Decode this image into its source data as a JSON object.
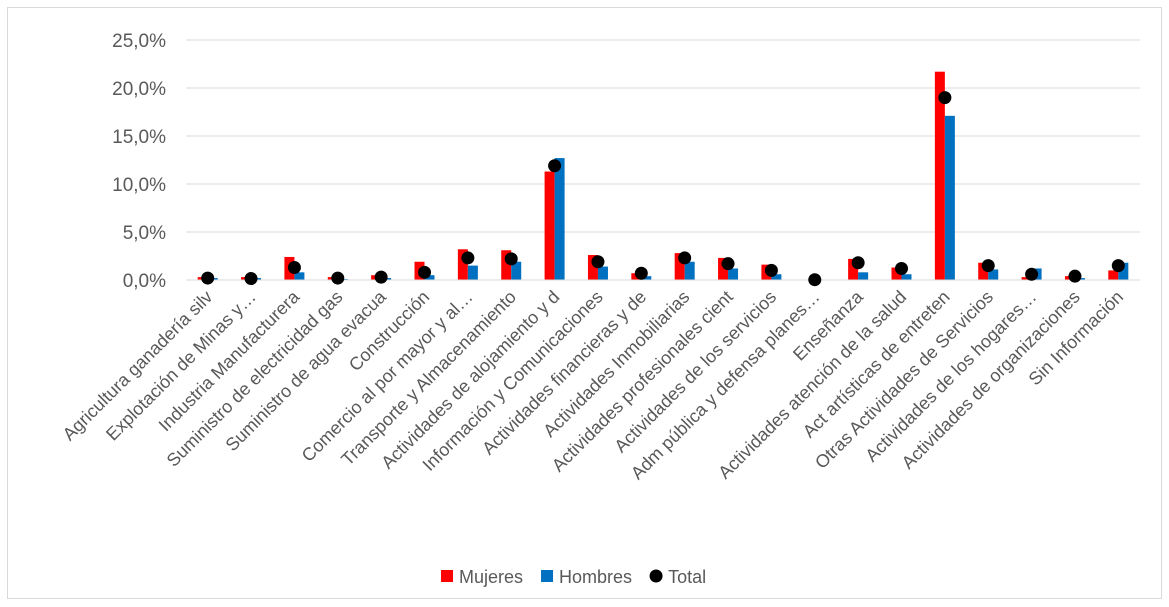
{
  "chart_data": {
    "type": "bar",
    "categories": [
      "Agricultura ganadería silv",
      "Explotación de Minas y…",
      "Industria Manufacturera",
      "Suministro de electricidad gas",
      "Suministro de agua evacua",
      "Construcción",
      "Comercio al por mayor y al…",
      "Transporte y Almacenamiento",
      "Actividades de alojamiento y d",
      "Información y Comunicaciones",
      "Actividades financieras y de",
      "Actividades Inmobiliarias",
      "Actividades profesionales cient",
      "Actividades de los servicios",
      "Adm pública y defensa planes…",
      "Enseñanza",
      "Actividades atención de la salud",
      "Act artísticas de entreten",
      "Otras Actividades de Servicios",
      "Actividades de los hogares…",
      "Actividades de organizaciones",
      "Sin Información"
    ],
    "series": [
      {
        "name": "Mujeres",
        "kind": "bar",
        "color": "#ff0000",
        "values": [
          0.3,
          0.3,
          2.4,
          0.3,
          0.5,
          1.9,
          3.2,
          3.1,
          11.3,
          2.6,
          0.7,
          2.8,
          2.3,
          1.6,
          0.05,
          2.2,
          1.3,
          21.7,
          1.8,
          0.3,
          0.4,
          1.0
        ]
      },
      {
        "name": "Hombres",
        "kind": "bar",
        "color": "#0070c0",
        "values": [
          0.2,
          0.2,
          0.8,
          0.1,
          0.2,
          0.5,
          1.5,
          1.9,
          12.7,
          1.4,
          0.4,
          1.9,
          1.2,
          0.6,
          0.02,
          0.8,
          0.6,
          17.1,
          1.1,
          1.2,
          0.2,
          1.8
        ]
      },
      {
        "name": "Total",
        "kind": "marker",
        "color": "#000000",
        "values": [
          0.2,
          0.15,
          1.3,
          0.2,
          0.3,
          0.8,
          2.3,
          2.2,
          11.9,
          1.9,
          0.7,
          2.3,
          1.7,
          1.0,
          0.03,
          1.8,
          1.2,
          19.0,
          1.5,
          0.6,
          0.4,
          1.5
        ]
      }
    ],
    "yticks": [
      "0,0%",
      "5,0%",
      "10,0%",
      "15,0%",
      "20,0%",
      "25,0%"
    ],
    "ylim": [
      0,
      25
    ],
    "title": "",
    "xlabel": "",
    "ylabel": "",
    "grid": true,
    "legend_position": "bottom"
  }
}
